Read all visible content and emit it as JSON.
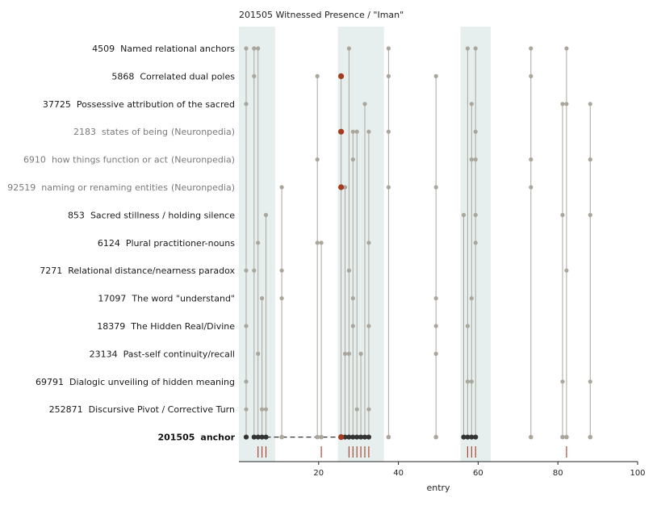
{
  "chart_data": {
    "type": "scatter",
    "title": "201505  Witnessed Presence / \"Iman\"",
    "xlabel": "entry",
    "ylabel": "",
    "xlim": [
      0,
      100
    ],
    "xticks": [
      20,
      40,
      60,
      80,
      100
    ],
    "highlight_bands": [
      [
        0,
        5.5
      ],
      [
        25,
        33
      ],
      [
        56,
        60
      ]
    ],
    "colors": {
      "point": "#aaa69c",
      "line": "#aaa69c",
      "highlight": "#a23b22",
      "anchor": "#333333",
      "band": "#e7efee",
      "tick_mark": "#a23b22"
    },
    "rows": [
      {
        "id": "4509",
        "label": "Named relational anchors",
        "source": "",
        "style": "normal",
        "points": [
          0,
          2,
          3,
          26,
          36,
          56,
          58,
          72,
          81
        ],
        "highlight": []
      },
      {
        "id": "5868",
        "label": "Correlated dual poles",
        "source": "",
        "style": "normal",
        "points": [
          2,
          18,
          36,
          48,
          72
        ],
        "highlight": [
          24
        ]
      },
      {
        "id": "37725",
        "label": "Possessive attribution of the sacred",
        "source": "",
        "style": "normal",
        "points": [
          0,
          30,
          57,
          80,
          81,
          87
        ],
        "highlight": []
      },
      {
        "id": "2183",
        "label": "states of being",
        "source": "(Neuronpedia)",
        "style": "muted",
        "points": [
          27,
          28,
          31,
          36,
          58
        ],
        "highlight": [
          24
        ]
      },
      {
        "id": "6910",
        "label": "how things function or act",
        "source": "(Neuronpedia)",
        "style": "muted",
        "points": [
          18,
          27,
          57,
          58,
          72,
          87
        ],
        "highlight": []
      },
      {
        "id": "92519",
        "label": "naming or renaming entities",
        "source": "(Neuronpedia)",
        "style": "muted",
        "points": [
          9,
          25,
          36,
          48,
          72
        ],
        "highlight": [
          24
        ]
      },
      {
        "id": "853",
        "label": "Sacred stillness / holding silence",
        "source": "",
        "style": "normal",
        "points": [
          5,
          55,
          58,
          80,
          87
        ],
        "highlight": []
      },
      {
        "id": "6124",
        "label": "Plural practitioner-nouns",
        "source": "",
        "style": "normal",
        "points": [
          3,
          18,
          19,
          31,
          58
        ],
        "highlight": []
      },
      {
        "id": "7271",
        "label": "Relational distance/nearness paradox",
        "source": "",
        "style": "normal",
        "points": [
          0,
          2,
          9,
          26,
          81
        ],
        "highlight": []
      },
      {
        "id": "17097",
        "label": "The word \"understand\"",
        "source": "",
        "style": "normal",
        "points": [
          4,
          9,
          27,
          48,
          57
        ],
        "highlight": []
      },
      {
        "id": "18379",
        "label": "The Hidden Real/Divine",
        "source": "",
        "style": "normal",
        "points": [
          0,
          27,
          31,
          48,
          56
        ],
        "highlight": []
      },
      {
        "id": "23134",
        "label": "Past-self continuity/recall",
        "source": "",
        "style": "normal",
        "points": [
          3,
          25,
          26,
          29,
          48
        ],
        "highlight": []
      },
      {
        "id": "69791",
        "label": "Dialogic unveiling of hidden meaning",
        "source": "",
        "style": "normal",
        "points": [
          0,
          56,
          57,
          80,
          87
        ],
        "highlight": []
      },
      {
        "id": "252871",
        "label": "Discursive Pivot / Corrective Turn",
        "source": "",
        "style": "normal",
        "points": [
          0,
          4,
          5,
          28,
          31
        ],
        "highlight": []
      }
    ],
    "anchor": {
      "id": "201505",
      "label": "anchor",
      "dark_points": [
        0,
        2,
        3,
        4,
        5,
        25,
        26,
        27,
        28,
        29,
        30,
        31,
        55,
        56,
        57,
        58
      ],
      "light_points": [
        9,
        18,
        19,
        36,
        48,
        72,
        80,
        81,
        87
      ],
      "highlight": [
        24
      ],
      "dashed_segment": [
        5,
        24
      ]
    },
    "rug_ticks": [
      3,
      4,
      5,
      19,
      26,
      27,
      28,
      29,
      30,
      31,
      56,
      57,
      58,
      81
    ]
  }
}
